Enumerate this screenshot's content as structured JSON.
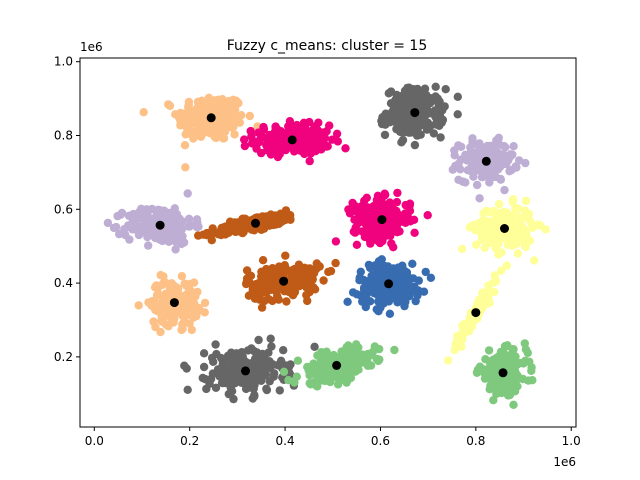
{
  "chart_data": {
    "type": "scatter",
    "title": "Fuzzy c_means: cluster = 15",
    "xlabel": "",
    "ylabel": "",
    "x_offset_label": "1e6",
    "y_offset_label": "1e6",
    "xlim": [
      -0.03,
      1.01
    ],
    "ylim": [
      0.01,
      1.01
    ],
    "x_ticks": [
      0.0,
      0.2,
      0.4,
      0.6,
      0.8,
      1.0
    ],
    "x_tick_labels": [
      "0.0",
      "0.2",
      "0.4",
      "0.6",
      "0.8",
      "1.0"
    ],
    "y_ticks": [
      0.2,
      0.4,
      0.6,
      0.8,
      1.0
    ],
    "y_tick_labels": [
      "0.2",
      "0.4",
      "0.6",
      "0.8",
      "1.0"
    ],
    "grid": false,
    "legend": "none",
    "centroid_color": "#000000",
    "clusters": [
      {
        "center": [
          0.245,
          0.848
        ],
        "color": "#fdc086",
        "spread": [
          0.035,
          0.032
        ],
        "corr": 0,
        "n": 220
      },
      {
        "center": [
          0.415,
          0.788
        ],
        "color": "#f0027f",
        "spread": [
          0.04,
          0.02
        ],
        "corr": 0,
        "n": 200
      },
      {
        "center": [
          0.672,
          0.862
        ],
        "color": "#666666",
        "spread": [
          0.03,
          0.032
        ],
        "corr": 0,
        "n": 200
      },
      {
        "center": [
          0.822,
          0.73
        ],
        "color": "#beaed4",
        "spread": [
          0.028,
          0.026
        ],
        "corr": 0,
        "n": 180
      },
      {
        "center": [
          0.138,
          0.557
        ],
        "color": "#beaed4",
        "spread": [
          0.035,
          0.025
        ],
        "corr": 0,
        "n": 200
      },
      {
        "center": [
          0.338,
          0.562
        ],
        "color": "#bf5b17",
        "spread": [
          0.045,
          0.015
        ],
        "corr": 0.8,
        "n": 200
      },
      {
        "center": [
          0.603,
          0.572
        ],
        "color": "#f0027f",
        "spread": [
          0.03,
          0.028
        ],
        "corr": 0,
        "n": 200
      },
      {
        "center": [
          0.86,
          0.548
        ],
        "color": "#ffff99",
        "spread": [
          0.03,
          0.03
        ],
        "corr": 0,
        "n": 190
      },
      {
        "center": [
          0.168,
          0.347
        ],
        "color": "#fdc086",
        "spread": [
          0.025,
          0.03
        ],
        "corr": 0,
        "n": 170
      },
      {
        "center": [
          0.397,
          0.405
        ],
        "color": "#bf5b17",
        "spread": [
          0.038,
          0.025
        ],
        "corr": 0.3,
        "n": 200
      },
      {
        "center": [
          0.617,
          0.398
        ],
        "color": "#386cb0",
        "spread": [
          0.032,
          0.028
        ],
        "corr": 0,
        "n": 200
      },
      {
        "center": [
          0.8,
          0.32
        ],
        "color": "#ffff99",
        "spread": [
          0.025,
          0.055
        ],
        "corr": 0.97,
        "n": 100
      },
      {
        "center": [
          0.317,
          0.162
        ],
        "color": "#666666",
        "spread": [
          0.04,
          0.03
        ],
        "corr": 0,
        "n": 220
      },
      {
        "center": [
          0.508,
          0.177
        ],
        "color": "#7fc97f",
        "spread": [
          0.04,
          0.025
        ],
        "corr": 0.5,
        "n": 190
      },
      {
        "center": [
          0.857,
          0.157
        ],
        "color": "#7fc97f",
        "spread": [
          0.025,
          0.028
        ],
        "corr": 0,
        "n": 180
      }
    ]
  }
}
